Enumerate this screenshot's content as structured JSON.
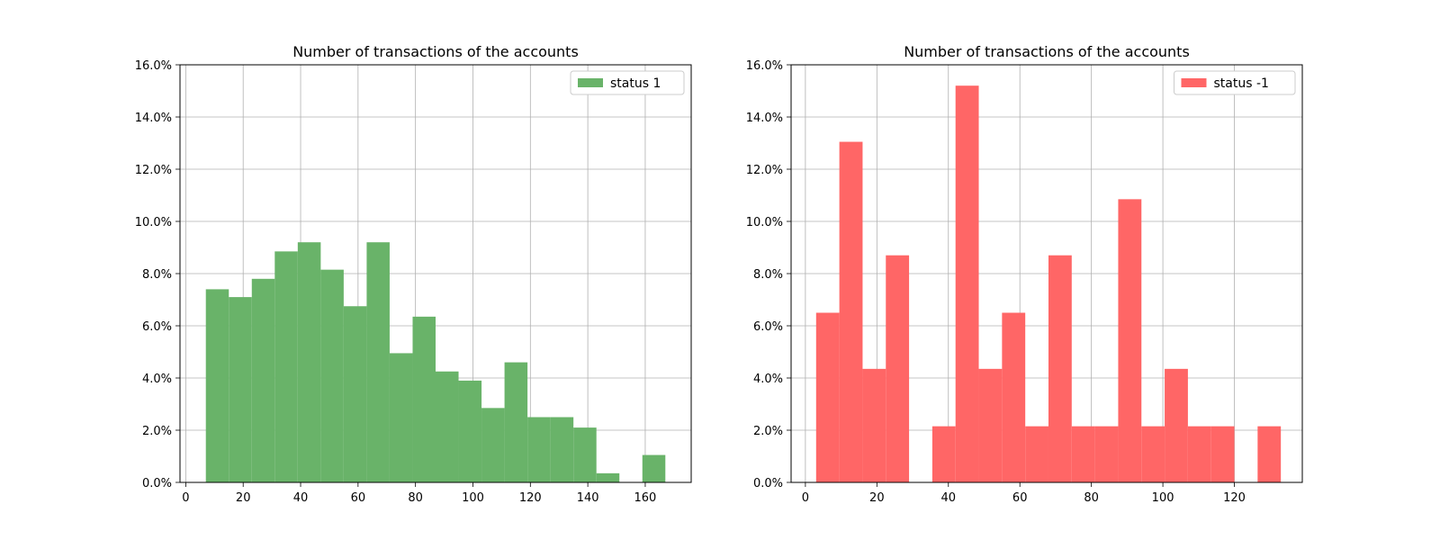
{
  "chart_data": [
    {
      "type": "bar",
      "title": "Number of transactions of the accounts",
      "xlabel": "",
      "ylabel": "",
      "xlim": [
        -2,
        176
      ],
      "ylim": [
        0,
        16
      ],
      "y_tick_format": "percent",
      "xticks": [
        0,
        20,
        40,
        60,
        80,
        100,
        120,
        140,
        160
      ],
      "yticks": [
        0,
        2,
        4,
        6,
        8,
        10,
        12,
        14,
        16
      ],
      "grid": true,
      "legend_position": "top-right",
      "color": "#69b369",
      "series": [
        {
          "name": "status 1",
          "bins": [
            {
              "start": 7,
              "end": 15,
              "value": 7.4
            },
            {
              "start": 15,
              "end": 23,
              "value": 7.1
            },
            {
              "start": 23,
              "end": 31,
              "value": 7.8
            },
            {
              "start": 31,
              "end": 39,
              "value": 8.85
            },
            {
              "start": 39,
              "end": 47,
              "value": 9.2
            },
            {
              "start": 47,
              "end": 55,
              "value": 8.15
            },
            {
              "start": 55,
              "end": 63,
              "value": 6.75
            },
            {
              "start": 63,
              "end": 71,
              "value": 9.2
            },
            {
              "start": 71,
              "end": 79,
              "value": 4.95
            },
            {
              "start": 79,
              "end": 87,
              "value": 6.35
            },
            {
              "start": 87,
              "end": 95,
              "value": 4.25
            },
            {
              "start": 95,
              "end": 103,
              "value": 3.9
            },
            {
              "start": 103,
              "end": 111,
              "value": 2.85
            },
            {
              "start": 111,
              "end": 119,
              "value": 4.6
            },
            {
              "start": 119,
              "end": 127,
              "value": 2.5
            },
            {
              "start": 127,
              "end": 135,
              "value": 2.5
            },
            {
              "start": 135,
              "end": 143,
              "value": 2.1
            },
            {
              "start": 143,
              "end": 151,
              "value": 0.35
            },
            {
              "start": 151,
              "end": 159,
              "value": 0
            },
            {
              "start": 159,
              "end": 167,
              "value": 1.05
            }
          ]
        }
      ]
    },
    {
      "type": "bar",
      "title": "Number of transactions of the accounts",
      "xlabel": "",
      "ylabel": "",
      "xlim": [
        -4,
        139
      ],
      "ylim": [
        0,
        16
      ],
      "y_tick_format": "percent",
      "xticks": [
        0,
        20,
        40,
        60,
        80,
        100,
        120
      ],
      "yticks": [
        0,
        2,
        4,
        6,
        8,
        10,
        12,
        14,
        16
      ],
      "grid": true,
      "legend_position": "top-right",
      "color": "#ff6666",
      "series": [
        {
          "name": "status -1",
          "bins": [
            {
              "start": 3,
              "end": 9.5,
              "value": 6.5
            },
            {
              "start": 9.5,
              "end": 16,
              "value": 13.05
            },
            {
              "start": 16,
              "end": 22.5,
              "value": 4.35
            },
            {
              "start": 22.5,
              "end": 29,
              "value": 8.7
            },
            {
              "start": 29,
              "end": 35.5,
              "value": 0
            },
            {
              "start": 35.5,
              "end": 42,
              "value": 2.15
            },
            {
              "start": 42,
              "end": 48.5,
              "value": 15.2
            },
            {
              "start": 48.5,
              "end": 55,
              "value": 4.35
            },
            {
              "start": 55,
              "end": 61.5,
              "value": 6.5
            },
            {
              "start": 61.5,
              "end": 68,
              "value": 2.15
            },
            {
              "start": 68,
              "end": 74.5,
              "value": 8.7
            },
            {
              "start": 74.5,
              "end": 81,
              "value": 2.15
            },
            {
              "start": 81,
              "end": 87.5,
              "value": 2.15
            },
            {
              "start": 87.5,
              "end": 94,
              "value": 10.85
            },
            {
              "start": 94,
              "end": 100.5,
              "value": 2.15
            },
            {
              "start": 100.5,
              "end": 107,
              "value": 4.35
            },
            {
              "start": 107,
              "end": 113.5,
              "value": 2.15
            },
            {
              "start": 113.5,
              "end": 120,
              "value": 2.15
            },
            {
              "start": 120,
              "end": 126.5,
              "value": 0
            },
            {
              "start": 126.5,
              "end": 133,
              "value": 2.15
            }
          ]
        }
      ]
    }
  ]
}
